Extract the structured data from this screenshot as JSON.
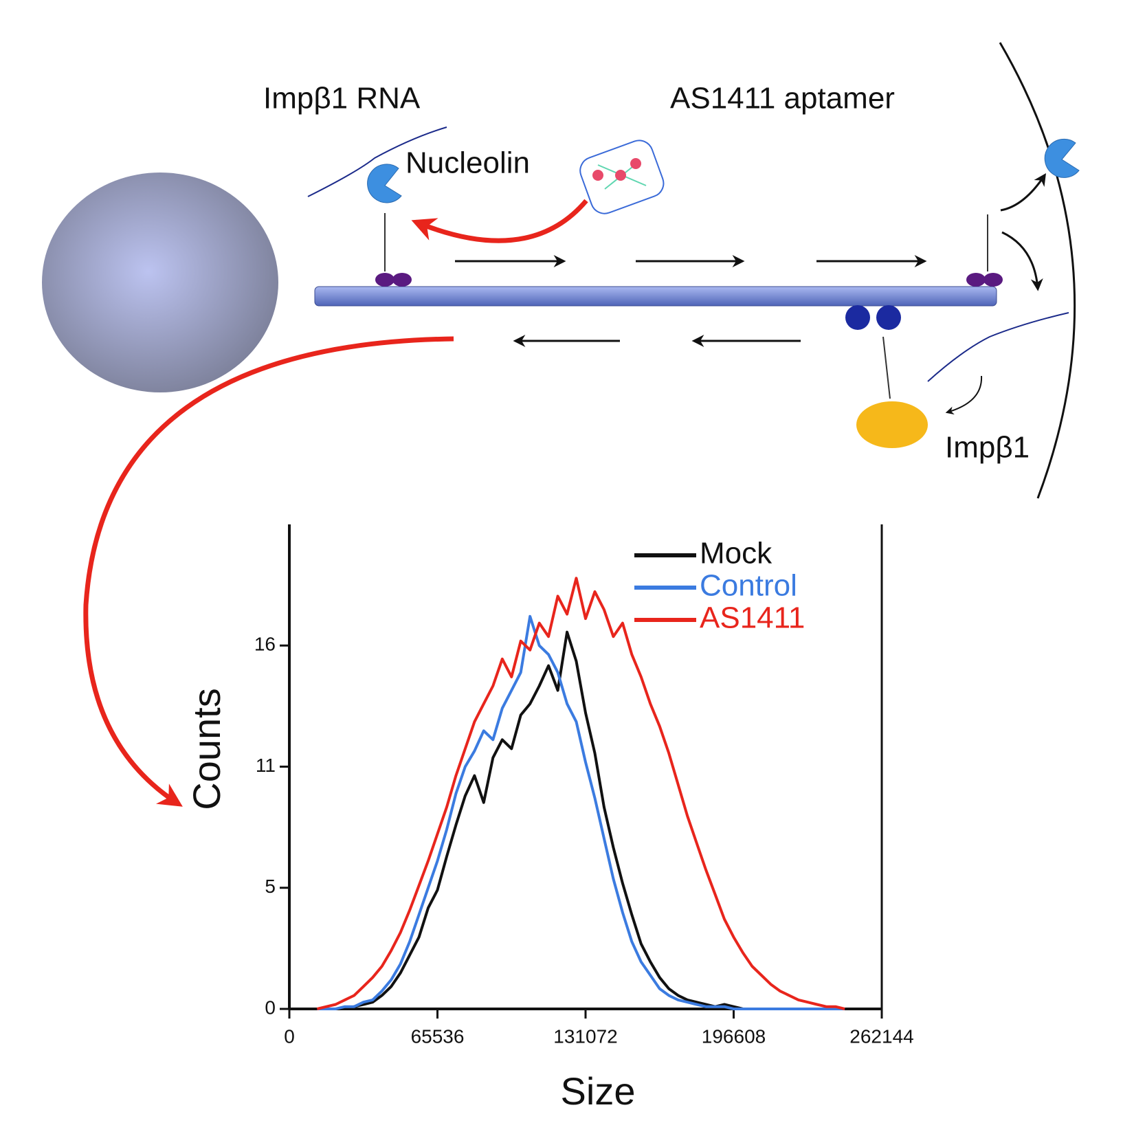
{
  "diagram": {
    "labels": [
      "Impβ1 RNA",
      "AS1411 aptamer",
      "Nucleolin",
      "Impβ1"
    ]
  },
  "chart_data": {
    "type": "line",
    "x_label": "Size",
    "y_label": "Counts",
    "xlim": [
      0,
      262144
    ],
    "ylim": [
      0,
      21.6
    ],
    "xticks": [
      0,
      65536,
      131072,
      196608,
      262144
    ],
    "yticks": [
      0,
      {
        "value": 5.4,
        "label": "5"
      },
      {
        "value": 10.8,
        "label": "11"
      },
      {
        "value": 16.2,
        "label": "16"
      }
    ],
    "legend": "upper right",
    "x": [
      12288,
      16384,
      20480,
      24576,
      28672,
      32768,
      36864,
      40960,
      45056,
      49152,
      53248,
      57344,
      61440,
      65536,
      69632,
      73728,
      77824,
      81920,
      86016,
      90112,
      94208,
      98304,
      102400,
      106496,
      110592,
      114688,
      118784,
      122880,
      126976,
      131072,
      135168,
      139264,
      143360,
      147456,
      151552,
      155648,
      159744,
      163840,
      167936,
      172032,
      176128,
      180224,
      184320,
      188416,
      192512,
      196608,
      200704,
      204800,
      208896,
      212992,
      217088,
      221184,
      225280,
      229376,
      233472,
      237568,
      241664,
      245760
    ],
    "series": [
      {
        "name": "Mock",
        "color": "#111111",
        "values": [
          0,
          0,
          0,
          0,
          0.1,
          0.2,
          0.3,
          0.6,
          1.0,
          1.6,
          2.4,
          3.2,
          4.5,
          5.3,
          6.8,
          8.2,
          9.5,
          10.4,
          9.2,
          11.2,
          12.0,
          11.6,
          13.1,
          13.6,
          14.4,
          15.3,
          14.2,
          16.8,
          15.5,
          13.2,
          11.4,
          9.0,
          7.2,
          5.6,
          4.2,
          2.9,
          2.1,
          1.4,
          0.9,
          0.6,
          0.4,
          0.3,
          0.2,
          0.1,
          0.2,
          0.1,
          0,
          0,
          0,
          0,
          0,
          0,
          0,
          0,
          0,
          0,
          0,
          0
        ]
      },
      {
        "name": "Control",
        "color": "#3b7be0",
        "values": [
          0,
          0,
          0,
          0.1,
          0.1,
          0.3,
          0.4,
          0.8,
          1.3,
          2.0,
          3.0,
          4.2,
          5.4,
          6.6,
          8.0,
          9.6,
          10.8,
          11.5,
          12.4,
          12.0,
          13.4,
          14.2,
          15.0,
          17.5,
          16.2,
          15.8,
          15.0,
          13.6,
          12.8,
          11.0,
          9.4,
          7.6,
          5.8,
          4.3,
          3.0,
          2.1,
          1.5,
          0.9,
          0.6,
          0.4,
          0.3,
          0.2,
          0.1,
          0.1,
          0.1,
          0,
          0,
          0,
          0,
          0,
          0,
          0,
          0,
          0,
          0,
          0,
          0,
          0
        ]
      },
      {
        "name": "AS1411",
        "color": "#e8251c",
        "values": [
          0,
          0.1,
          0.2,
          0.4,
          0.6,
          1.0,
          1.4,
          1.9,
          2.6,
          3.4,
          4.4,
          5.5,
          6.6,
          7.8,
          9.0,
          10.4,
          11.6,
          12.8,
          13.6,
          14.4,
          15.6,
          14.8,
          16.4,
          16.0,
          17.2,
          16.6,
          18.4,
          17.6,
          19.2,
          17.4,
          18.6,
          17.8,
          16.6,
          17.2,
          15.8,
          14.8,
          13.6,
          12.6,
          11.4,
          10.0,
          8.6,
          7.4,
          6.2,
          5.1,
          4.0,
          3.2,
          2.5,
          1.9,
          1.5,
          1.1,
          0.8,
          0.6,
          0.4,
          0.3,
          0.2,
          0.1,
          0.1,
          0
        ]
      }
    ]
  }
}
